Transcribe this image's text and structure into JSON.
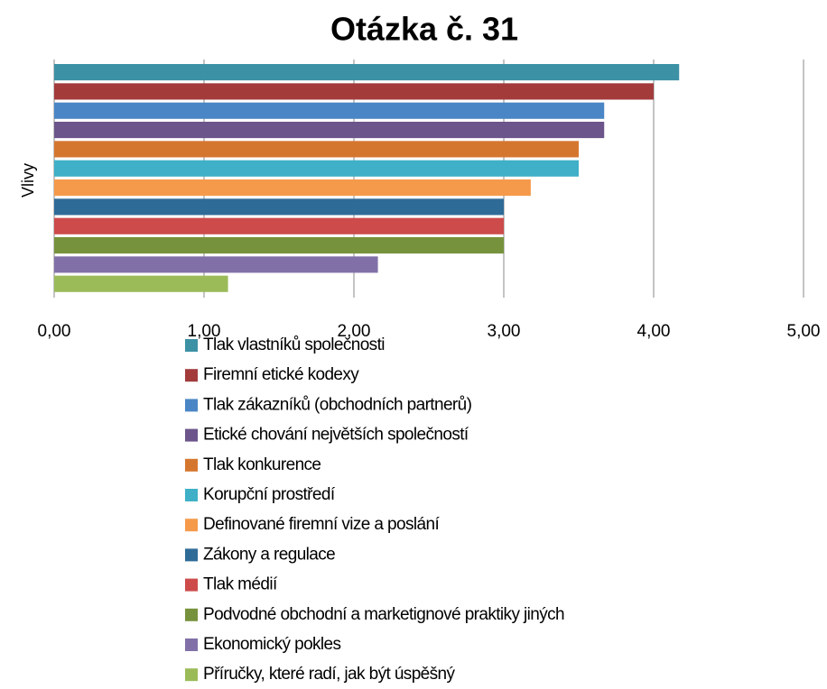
{
  "chart_data": {
    "type": "bar",
    "orientation": "horizontal",
    "title": "Otázka č. 31",
    "categories": [
      "Vlivy"
    ],
    "series": [
      {
        "name": "Tlak vlastníků společnosti",
        "color": "#3c91a5",
        "values": [
          4.17
        ]
      },
      {
        "name": "Firemní etické kodexy",
        "color": "#a33b3b",
        "values": [
          4.0
        ]
      },
      {
        "name": "Tlak zákazníků (obchodních partnerů)",
        "color": "#4a86c5",
        "values": [
          3.67
        ]
      },
      {
        "name": "Etické chování největších společností",
        "color": "#6b558a",
        "values": [
          3.67
        ]
      },
      {
        "name": "Tlak konkurence",
        "color": "#d5762f",
        "values": [
          3.5
        ]
      },
      {
        "name": "Korupční prostředí",
        "color": "#3fb0c7",
        "values": [
          3.5
        ]
      },
      {
        "name": "Definované firemní vize a poslání",
        "color": "#f59a4a",
        "values": [
          3.18
        ]
      },
      {
        "name": "Zákony a regulace",
        "color": "#2f6b97",
        "values": [
          3.0
        ]
      },
      {
        "name": "Tlak médií",
        "color": "#cd4b4b",
        "values": [
          3.0
        ]
      },
      {
        "name": "Podvodné obchodní a marketignové praktiky jiných",
        "color": "#76923c",
        "values": [
          3.0
        ]
      },
      {
        "name": "Ekonomický pokles",
        "color": "#8170a8",
        "values": [
          2.16
        ]
      },
      {
        "name": "Příručky, které radí, jak být úspěšný",
        "color": "#9bbb59",
        "values": [
          1.16
        ]
      }
    ],
    "xlim": [
      0,
      5
    ],
    "xticks": [
      {
        "value": 0,
        "label": "0,00"
      },
      {
        "value": 1,
        "label": "1,00"
      },
      {
        "value": 2,
        "label": "2,00"
      },
      {
        "value": 3,
        "label": "3,00"
      },
      {
        "value": 4,
        "label": "4,00"
      },
      {
        "value": 5,
        "label": "5,00"
      }
    ],
    "grid": true,
    "legend": "bottom"
  }
}
